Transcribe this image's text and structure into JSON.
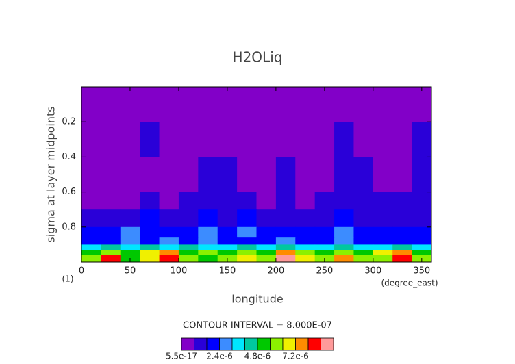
{
  "chart_data": {
    "type": "contour",
    "title": "H2OLiq",
    "xlabel": "longitude",
    "ylabel": "sigma at layer midpoints",
    "xunit": "(degree_east)",
    "yunit": "(1)",
    "contour_note": "CONTOUR INTERVAL = 8.000E-07",
    "xlim": [
      0,
      360
    ],
    "xticks": [
      0,
      50,
      100,
      150,
      200,
      250,
      300,
      350
    ],
    "ylim": [
      0,
      1
    ],
    "y_inverted": true,
    "yticks": [
      {
        "value": 0.2,
        "label": "0.2"
      },
      {
        "value": 0.4,
        "label": "0.4"
      },
      {
        "value": 0.6,
        "label": "0.6"
      },
      {
        "value": 0.8,
        "label": "0.8"
      }
    ],
    "xbins": [
      0,
      20,
      40,
      60,
      80,
      100,
      120,
      140,
      160,
      180,
      200,
      220,
      240,
      260,
      280,
      300,
      320,
      340,
      360
    ],
    "ybins": [
      0,
      0.2,
      0.4,
      0.6,
      0.7,
      0.8,
      0.86,
      0.9,
      0.93,
      0.96,
      1.0
    ],
    "z": [
      [
        1e-07,
        1e-07,
        1e-07,
        1e-07,
        1e-07,
        1e-07,
        1e-07,
        1e-07,
        1e-07,
        1e-07,
        1e-07,
        1e-07,
        1e-07,
        1e-07,
        1e-07,
        1e-07,
        1e-07,
        1e-07
      ],
      [
        1e-07,
        1e-07,
        1e-07,
        9e-07,
        1e-07,
        1e-07,
        1e-07,
        1e-07,
        1e-07,
        1e-07,
        1e-07,
        1e-07,
        1e-07,
        9e-07,
        1e-07,
        1e-07,
        1e-07,
        9e-07
      ],
      [
        2e-07,
        1e-07,
        1e-07,
        1e-07,
        1e-07,
        1e-07,
        1e-06,
        1e-06,
        2e-07,
        1e-07,
        1e-06,
        2e-07,
        1e-07,
        1e-06,
        1e-06,
        2e-07,
        1e-07,
        1e-06
      ],
      [
        3e-07,
        3e-07,
        3e-07,
        9e-07,
        3e-07,
        1.2e-06,
        1.2e-06,
        1.1e-06,
        1.2e-06,
        3e-07,
        1.2e-06,
        3e-07,
        1.2e-06,
        1.3e-06,
        1.2e-06,
        9e-07,
        1.2e-06,
        1.2e-06
      ],
      [
        1.3e-06,
        1.2e-06,
        1.3e-06,
        1.8e-06,
        1.3e-06,
        1.3e-06,
        1.7e-06,
        1.3e-06,
        1.7e-06,
        1.2e-06,
        1.3e-06,
        1.2e-06,
        1.3e-06,
        2e-06,
        1.3e-06,
        1.2e-06,
        1.3e-06,
        1.2e-06
      ],
      [
        1.8e-06,
        1.7e-06,
        2.6e-06,
        1.8e-06,
        2e-06,
        1.8e-06,
        2.6e-06,
        1.8e-06,
        2.6e-06,
        1.8e-06,
        1.7e-06,
        1.8e-06,
        1.9e-06,
        2.7e-06,
        1.8e-06,
        1.7e-06,
        1.8e-06,
        1.7e-06
      ],
      [
        2.1e-06,
        2.2e-06,
        2.8e-06,
        2.1e-06,
        2.9e-06,
        2.2e-06,
        2.8e-06,
        2.1e-06,
        2.2e-06,
        2.1e-06,
        2.8e-06,
        2.1e-06,
        2.2e-06,
        2.9e-06,
        2.1e-06,
        2.2e-06,
        2.1e-06,
        2.2e-06
      ],
      [
        3.4e-06,
        4.2e-06,
        3.5e-06,
        4.4e-06,
        3.6e-06,
        4.1e-06,
        3.4e-06,
        3.5e-06,
        4.3e-06,
        3.4e-06,
        4.1e-06,
        3.5e-06,
        3.6e-06,
        4.2e-06,
        3.4e-06,
        3.5e-06,
        4.1e-06,
        3.5e-06
      ],
      [
        5.2e-06,
        6.1e-06,
        5e-06,
        6.4e-06,
        7.4e-06,
        5.3e-06,
        6.2e-06,
        5.1e-06,
        6.3e-06,
        5.2e-06,
        7.6e-06,
        6.1e-06,
        5.4e-06,
        6.2e-06,
        5.1e-06,
        6.5e-06,
        7.3e-06,
        5.2e-06
      ],
      [
        6.3e-06,
        8.2e-06,
        5.5e-06,
        7e-06,
        8.6e-06,
        6.2e-06,
        5.4e-06,
        6.1e-06,
        7.1e-06,
        6e-06,
        8.8e-06,
        6.4e-06,
        5.6e-06,
        7.4e-06,
        6.2e-06,
        5.8e-06,
        8.3e-06,
        6.1e-06
      ]
    ],
    "clim": [
      0,
      9.6e-06
    ],
    "colors": [
      "#8200c8",
      "#2a00d8",
      "#0000ff",
      "#3c8cff",
      "#00e6ff",
      "#00c8a0",
      "#00c800",
      "#8cf000",
      "#f0f000",
      "#ff8c00",
      "#ff0000",
      "#ff9a9a"
    ],
    "colorbar_ticks": [
      {
        "value": 5.5e-17,
        "label": "5.5e-17"
      },
      {
        "value": 2.4e-06,
        "label": "2.4e-6"
      },
      {
        "value": 4.8e-06,
        "label": "4.8e-6"
      },
      {
        "value": 7.2e-06,
        "label": "7.2e-6"
      }
    ]
  }
}
